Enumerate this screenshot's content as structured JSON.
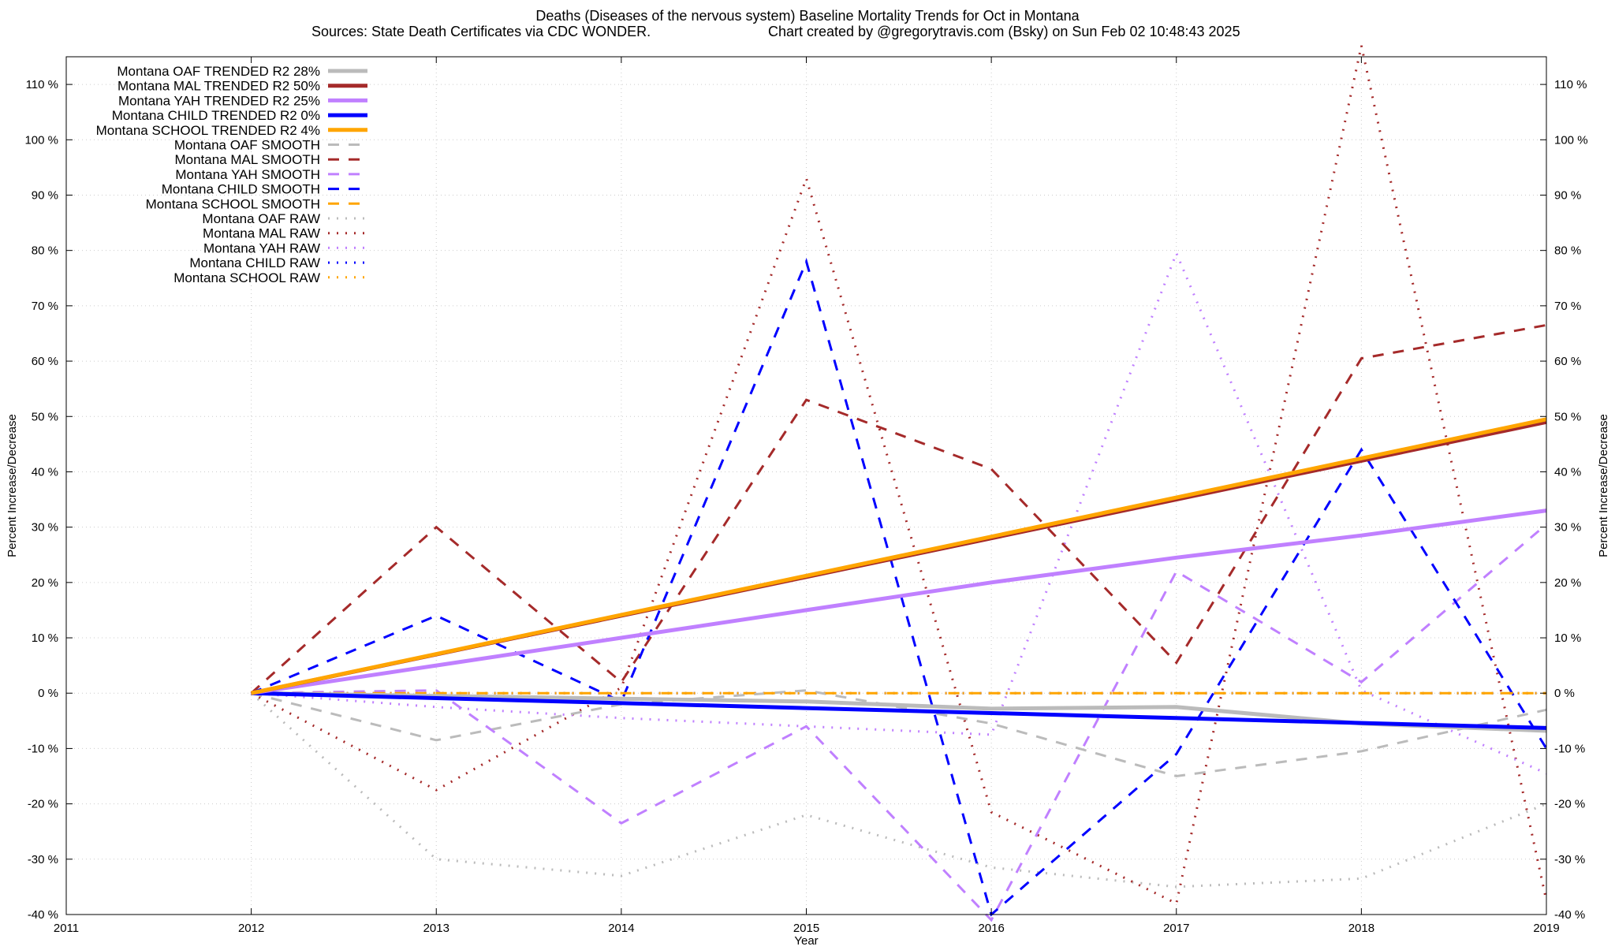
{
  "chart_data": {
    "type": "line",
    "title_line1": "Deaths (Diseases of the nervous system)  Baseline Mortality Trends for Oct in Montana",
    "title_line2_left": "Sources: State Death Certificates via CDC WONDER.",
    "title_line2_right": "Chart created by @gregorytravis.com (Bsky) on Sun Feb 02 10:48:43 2025",
    "xlabel": "Year",
    "ylabel_left": "Percent Increase/Decrease",
    "ylabel_right": "Percent Increase/Decrease",
    "xlim": [
      2011,
      2019
    ],
    "ylim": [
      -40,
      115
    ],
    "x_ticks": [
      2011,
      2012,
      2013,
      2014,
      2015,
      2016,
      2017,
      2018,
      2019
    ],
    "y_ticks": [
      -40,
      -30,
      -20,
      -10,
      0,
      10,
      20,
      30,
      40,
      50,
      60,
      70,
      80,
      90,
      100,
      110
    ],
    "y_tick_labels": [
      "-40 %",
      "-30 %",
      "-20 %",
      "-10 %",
      "0 %",
      "10 %",
      "20 %",
      "30 %",
      "40 %",
      "50 %",
      "60 %",
      "70 %",
      "80 %",
      "90 %",
      "100 %",
      "110 %"
    ],
    "grid": true,
    "legend_position": "top-left",
    "series": [
      {
        "name": "Montana OAF TRENDED R2  28%",
        "style": "trended",
        "color": "#bbbbbb",
        "x": [
          2012,
          2013,
          2014,
          2015,
          2016,
          2017,
          2018,
          2019
        ],
        "y": [
          0,
          -0.5,
          -1,
          -1.5,
          -2.8,
          -2.5,
          -5.5,
          -6.8
        ]
      },
      {
        "name": "Montana MAL TRENDED R2  50%",
        "style": "trended",
        "color": "#a52a2a",
        "x": [
          2012,
          2019
        ],
        "y": [
          0,
          49
        ]
      },
      {
        "name": "Montana YAH TRENDED R2  25%",
        "style": "trended",
        "color": "#c080ff",
        "x": [
          2012,
          2013,
          2014,
          2015,
          2016,
          2017,
          2018,
          2019
        ],
        "y": [
          0,
          5,
          10,
          15,
          20,
          24.5,
          28.5,
          33
        ]
      },
      {
        "name": "Montana CHILD TRENDED R2   0%",
        "style": "trended",
        "color": "#0000ff",
        "x": [
          2012,
          2019
        ],
        "y": [
          0,
          -6.3
        ]
      },
      {
        "name": "Montana SCHOOL TRENDED R2   4%",
        "style": "trended",
        "color": "#ffa500",
        "x": [
          2012,
          2019
        ],
        "y": [
          0,
          49.5
        ]
      },
      {
        "name": "Montana OAF SMOOTH",
        "style": "smooth",
        "color": "#bbbbbb",
        "x": [
          2012,
          2013,
          2014,
          2015,
          2016,
          2017,
          2018,
          2019
        ],
        "y": [
          0,
          -8.5,
          -2,
          0.5,
          -5.5,
          -15,
          -10.5,
          -3
        ]
      },
      {
        "name": "Montana MAL SMOOTH",
        "style": "smooth",
        "color": "#a52a2a",
        "x": [
          2012,
          2013,
          2014,
          2015,
          2016,
          2017,
          2018,
          2019
        ],
        "y": [
          0,
          30,
          2,
          53,
          40.5,
          5.5,
          60.5,
          66.5
        ]
      },
      {
        "name": "Montana YAH SMOOTH",
        "style": "smooth",
        "color": "#c080ff",
        "x": [
          2012,
          2013,
          2014,
          2015,
          2016,
          2017,
          2018,
          2019
        ],
        "y": [
          0,
          0.5,
          -23.5,
          -6,
          -41,
          22,
          2,
          30.5
        ]
      },
      {
        "name": "Montana CHILD SMOOTH",
        "style": "smooth",
        "color": "#0000ff",
        "x": [
          2012,
          2013,
          2014,
          2015,
          2016,
          2017,
          2018,
          2019
        ],
        "y": [
          0,
          14,
          -1.5,
          78,
          -40,
          -11,
          44,
          -10
        ]
      },
      {
        "name": "Montana SCHOOL SMOOTH",
        "style": "smooth",
        "color": "#ffa500",
        "x": [
          2012,
          2019
        ],
        "y": [
          0,
          0
        ]
      },
      {
        "name": "Montana OAF RAW",
        "style": "raw",
        "color": "#bbbbbb",
        "x": [
          2012,
          2013,
          2014,
          2015,
          2016,
          2017,
          2018,
          2019
        ],
        "y": [
          0,
          -30,
          -33,
          -22,
          -31.5,
          -35,
          -33.5,
          -20
        ]
      },
      {
        "name": "Montana MAL RAW",
        "style": "raw",
        "color": "#a52a2a",
        "x": [
          2012,
          2013,
          2014,
          2015,
          2016,
          2017,
          2018,
          2019
        ],
        "y": [
          0,
          -17.5,
          1,
          93,
          -21.5,
          -38,
          117,
          -37.5
        ]
      },
      {
        "name": "Montana YAH RAW",
        "style": "raw",
        "color": "#c080ff",
        "x": [
          2012,
          2013,
          2014,
          2015,
          2016,
          2017,
          2018,
          2019
        ],
        "y": [
          0,
          -2.5,
          -4.5,
          -6,
          -7.5,
          79.5,
          0.5,
          -14.5
        ]
      },
      {
        "name": "Montana CHILD RAW",
        "style": "raw",
        "color": "#0000ff",
        "x": [
          2012,
          2019
        ],
        "y": [
          0,
          0
        ]
      },
      {
        "name": "Montana SCHOOL RAW",
        "style": "raw",
        "color": "#ffa500",
        "x": [
          2012,
          2019
        ],
        "y": [
          0,
          0
        ]
      }
    ]
  }
}
